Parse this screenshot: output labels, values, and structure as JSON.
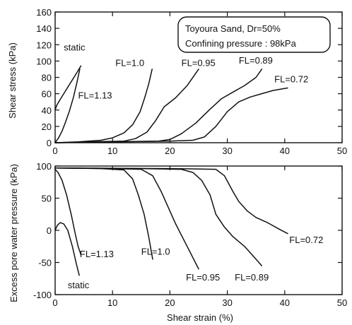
{
  "chart_data": [
    {
      "type": "line",
      "id": "top",
      "xlabel": "",
      "ylabel": "Shear stress (kPa)",
      "xlim": [
        0,
        50
      ],
      "ylim": [
        0,
        160
      ],
      "xticks": [
        0,
        10,
        20,
        30,
        40,
        50
      ],
      "yticks": [
        0,
        20,
        40,
        60,
        80,
        100,
        120,
        140,
        160
      ],
      "annotation_lines": [
        "Toyoura Sand, Dr=50%",
        "Confining pressure : 98kPa"
      ],
      "series": [
        {
          "name": "static",
          "x": [
            0,
            0.3,
            0.8,
            1.5,
            2.2,
            3.0,
            3.8,
            4.5
          ],
          "y": [
            40,
            46,
            52,
            60,
            68,
            77,
            86,
            94
          ]
        },
        {
          "name": "FL=1.13",
          "x": [
            0,
            0.6,
            1.2,
            1.8,
            2.5,
            3.2,
            3.8,
            4.3
          ],
          "y": [
            0,
            6,
            14,
            25,
            39,
            56,
            74,
            90
          ]
        },
        {
          "name": "FL=1.0",
          "x": [
            0,
            4,
            8,
            10,
            12,
            13.5,
            14.8,
            15.6,
            16.3,
            16.9
          ],
          "y": [
            0,
            1,
            3,
            6,
            12,
            22,
            38,
            55,
            72,
            90
          ]
        },
        {
          "name": "FL=0.95",
          "x": [
            0,
            6,
            12,
            14,
            16,
            17.5,
            19,
            21,
            23,
            25
          ],
          "y": [
            0,
            1,
            2,
            5,
            13,
            27,
            44,
            55,
            70,
            90
          ]
        },
        {
          "name": "FL=0.89",
          "x": [
            0,
            10,
            18,
            20,
            22,
            24.5,
            27,
            29,
            31,
            33,
            35,
            36
          ],
          "y": [
            0,
            1,
            2,
            4,
            11,
            24,
            41,
            54,
            62,
            70,
            80,
            90
          ]
        },
        {
          "name": "FL=0.72",
          "x": [
            0,
            10,
            20,
            24,
            26,
            28,
            30,
            32,
            34,
            36,
            38,
            40.5
          ],
          "y": [
            0,
            1,
            2,
            3,
            7,
            20,
            38,
            50,
            56,
            60,
            64,
            67
          ]
        }
      ],
      "labels": [
        {
          "text": "static",
          "x": 1.5,
          "y": 113
        },
        {
          "text": "FL=1.13",
          "x": 4.0,
          "y": 54
        },
        {
          "text": "FL=1.0",
          "x": 10.5,
          "y": 94
        },
        {
          "text": "FL=0.95",
          "x": 22.0,
          "y": 94
        },
        {
          "text": "FL=0.89",
          "x": 32.0,
          "y": 97
        },
        {
          "text": "FL=0.72",
          "x": 38.2,
          "y": 74
        }
      ]
    },
    {
      "type": "line",
      "id": "bottom",
      "xlabel": "Shear strain (%)",
      "ylabel": "Excess pore water pressure (kPa)",
      "xlim": [
        0,
        50
      ],
      "ylim": [
        -100,
        100
      ],
      "xticks": [
        0,
        10,
        20,
        30,
        40,
        50
      ],
      "yticks": [
        -100,
        -50,
        0,
        50,
        100
      ],
      "series": [
        {
          "name": "static",
          "x": [
            0,
            0.4,
            0.9,
            1.5,
            2.2,
            3.0,
            3.7,
            4.2
          ],
          "y": [
            0,
            8,
            12,
            10,
            0,
            -25,
            -52,
            -70
          ]
        },
        {
          "name": "FL=1.13",
          "x": [
            0,
            0.5,
            1.2,
            2.0,
            2.8,
            3.5,
            4.0,
            4.5
          ],
          "y": [
            95,
            90,
            78,
            55,
            25,
            -5,
            -25,
            -38
          ]
        },
        {
          "name": "FL=1.0",
          "x": [
            0,
            8,
            12,
            13.5,
            14.5,
            15.5,
            16.3,
            17.0
          ],
          "y": [
            97,
            96,
            94,
            80,
            55,
            25,
            -10,
            -45
          ]
        },
        {
          "name": "FL=0.95",
          "x": [
            0,
            10,
            15,
            17,
            18.5,
            19.5,
            21,
            23,
            25
          ],
          "y": [
            97,
            96,
            95,
            85,
            60,
            40,
            10,
            -25,
            -60
          ]
        },
        {
          "name": "FL=0.89",
          "x": [
            0,
            15,
            22,
            24,
            25.5,
            27,
            28,
            29.5,
            31,
            33,
            35,
            36
          ],
          "y": [
            97,
            96,
            95,
            90,
            78,
            55,
            25,
            5,
            -10,
            -25,
            -45,
            -55
          ]
        },
        {
          "name": "FL=0.72",
          "x": [
            0,
            20,
            28,
            29.5,
            31,
            32,
            33.5,
            35,
            37,
            39,
            40.5
          ],
          "y": [
            97,
            96,
            95,
            85,
            60,
            45,
            30,
            20,
            12,
            2,
            -5
          ]
        }
      ],
      "labels": [
        {
          "text": "FL=1.13",
          "x": 4.3,
          "y": -42
        },
        {
          "text": "static",
          "x": 2.2,
          "y": -90
        },
        {
          "text": "FL=1.0",
          "x": 15.0,
          "y": -38
        },
        {
          "text": "FL=0.95",
          "x": 22.8,
          "y": -78
        },
        {
          "text": "FL=0.89",
          "x": 31.3,
          "y": -78
        },
        {
          "text": "FL=0.72",
          "x": 40.8,
          "y": -20
        }
      ]
    }
  ]
}
